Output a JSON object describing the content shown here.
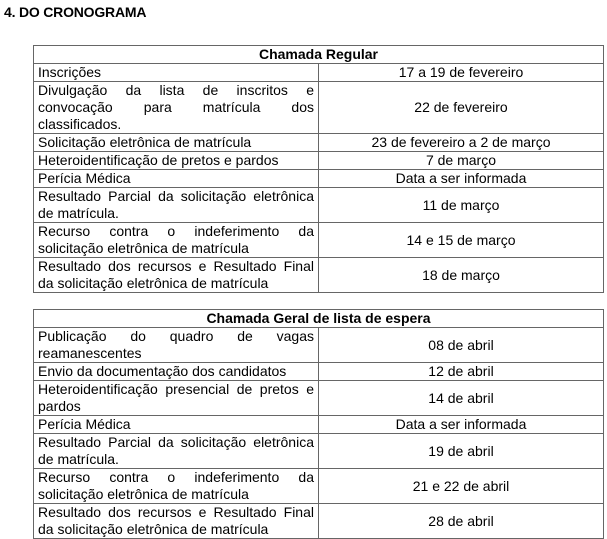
{
  "section_title": "4. DO CRONOGRAMA",
  "tables": [
    {
      "heading": "Chamada Regular",
      "rows": [
        {
          "event": "Inscrições",
          "date": "17 a 19 de fevereiro"
        },
        {
          "event": "Divulgação da lista de inscritos e convocação para matrícula dos classificados.",
          "date": "22 de fevereiro"
        },
        {
          "event": "Solicitação eletrônica de matrícula",
          "date": "23 de fevereiro a 2 de março"
        },
        {
          "event": "Heteroidentificação de pretos e pardos",
          "date": "7 de março"
        },
        {
          "event": "Perícia Médica",
          "date": "Data a ser informada"
        },
        {
          "event": "Resultado Parcial da solicitação eletrônica de matrícula.",
          "date": "11 de março"
        },
        {
          "event": "Recurso contra o indeferimento da solicitação eletrônica de matrícula",
          "date": "14 e 15 de março"
        },
        {
          "event": "Resultado dos recursos e Resultado Final da solicitação eletrônica de matrícula",
          "date": "18 de março"
        }
      ]
    },
    {
      "heading": "Chamada Geral de lista de espera",
      "rows": [
        {
          "event": "Publicação do quadro de vagas reamanescentes",
          "date": "08 de abril"
        },
        {
          "event": "Envio da documentação dos candidatos",
          "date": "12 de abril"
        },
        {
          "event": "Heteroidentificação presencial de pretos e pardos",
          "date": "14 de abril"
        },
        {
          "event": "Perícia Médica",
          "date": "Data a ser informada"
        },
        {
          "event": "Resultado Parcial da solicitação eletrônica de matrícula.",
          "date": "19 de abril"
        },
        {
          "event": "Recurso contra o indeferimento da solicitação eletrônica de matrícula",
          "date": "21 e 22 de abril"
        },
        {
          "event": "Resultado dos recursos e Resultado Final da solicitação eletrônica de matrícula",
          "date": "28 de abril"
        }
      ]
    }
  ]
}
